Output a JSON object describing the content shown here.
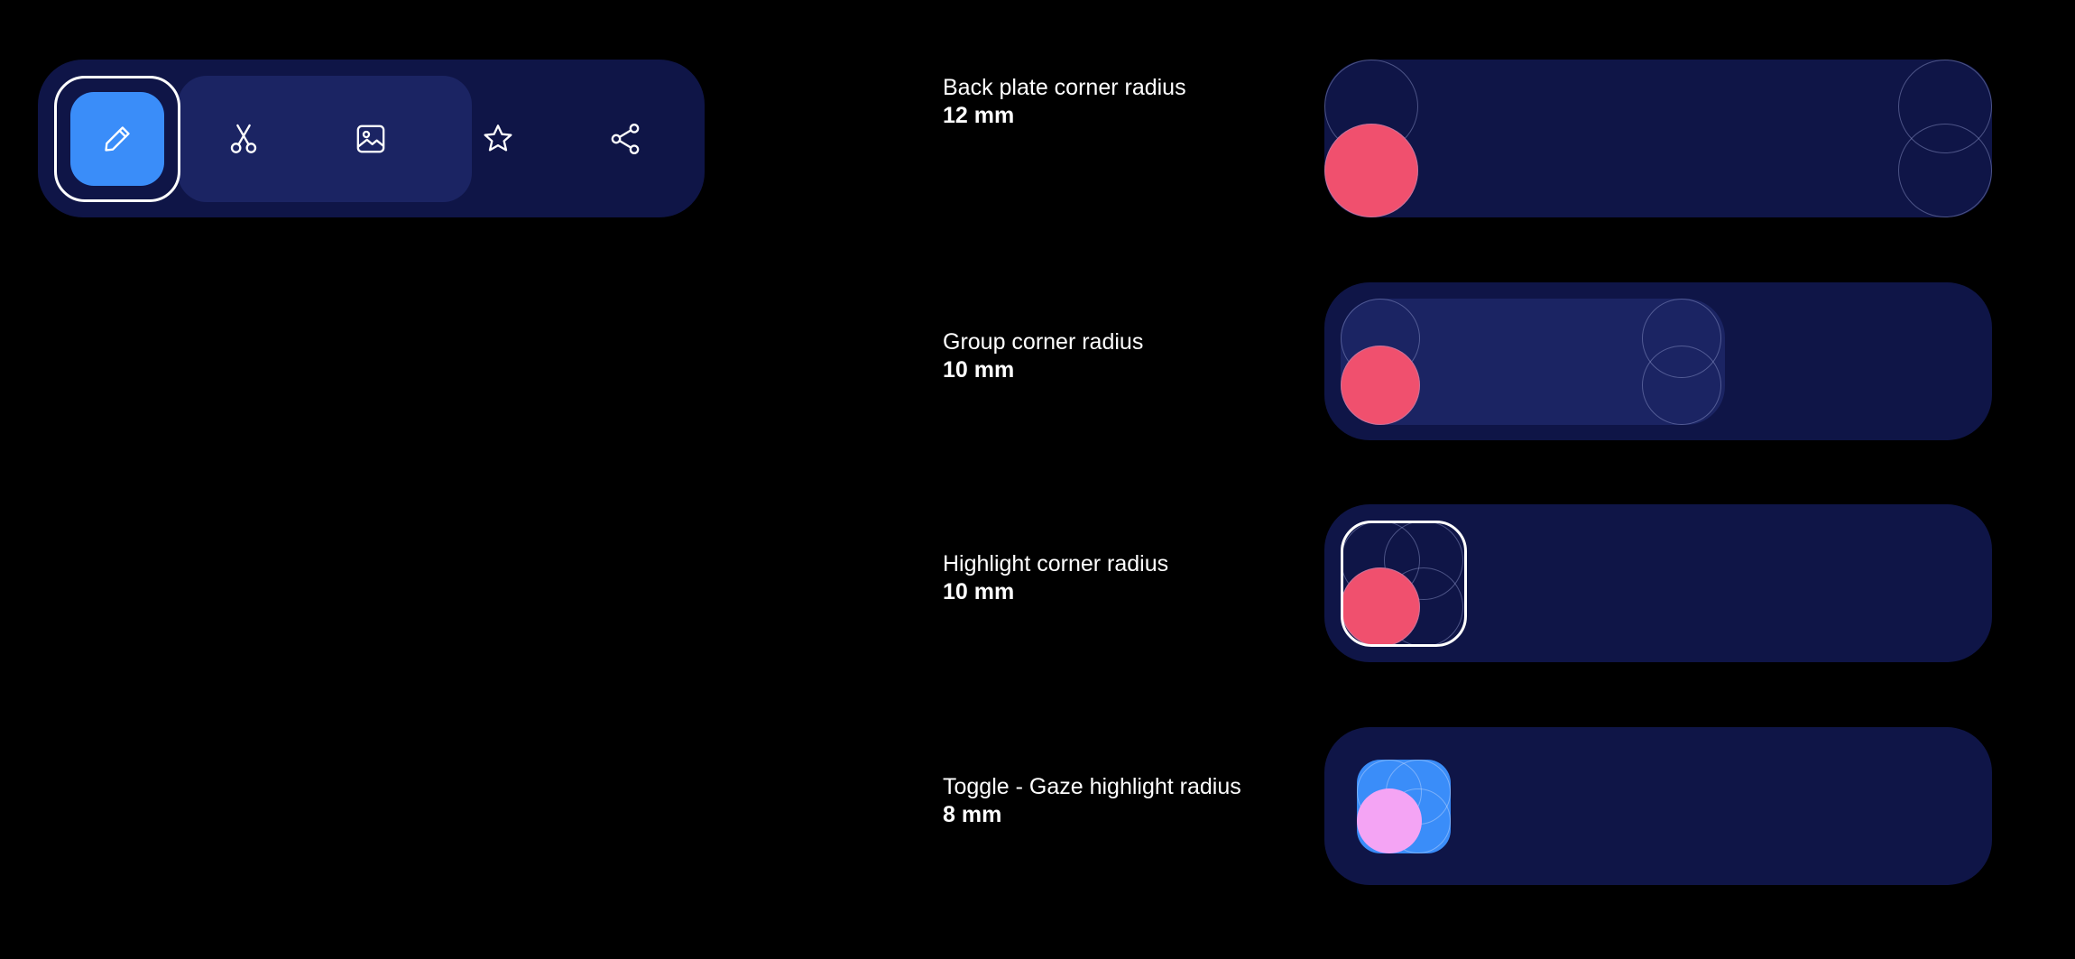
{
  "colors": {
    "background": "#000000",
    "back_plate": "#0f1547",
    "group": "#1b2463",
    "highlight_blue": "#3a8df9",
    "radius_dot": "#f0506e",
    "toggle_dot": "#f4a4f4",
    "ring": "#ffffff"
  },
  "toolbar": {
    "buttons": [
      {
        "icon": "pencil-icon",
        "state": "selected"
      },
      {
        "icon": "scissors-icon",
        "state": "grouped"
      },
      {
        "icon": "image-icon",
        "state": "grouped"
      },
      {
        "icon": "star-icon",
        "state": "default"
      },
      {
        "icon": "share-icon",
        "state": "default"
      }
    ]
  },
  "specs": [
    {
      "title": "Back plate corner radius",
      "value": "12 mm"
    },
    {
      "title": "Group corner radius",
      "value": "10 mm"
    },
    {
      "title": "Highlight corner radius",
      "value": "10 mm"
    },
    {
      "title": "Toggle - Gaze highlight radius",
      "value": "8 mm"
    }
  ]
}
